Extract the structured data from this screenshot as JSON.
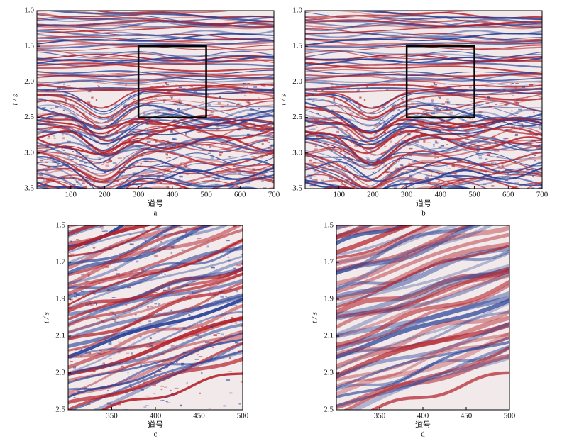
{
  "chart_data": [
    {
      "type": "seismic",
      "caption": "a",
      "xlabel": "道号",
      "ylabel": "t / s",
      "xlim": [
        0,
        700
      ],
      "xticks": [
        100,
        200,
        300,
        400,
        500,
        600,
        700
      ],
      "ylim": [
        3.5,
        1.0
      ],
      "yticks": [
        {
          "value": 1,
          "label": "1.0"
        },
        1.5,
        {
          "value": 2,
          "label": "2.0"
        },
        2.5,
        {
          "value": 3,
          "label": "3.0"
        },
        3.5
      ],
      "box": {
        "x": [
          300,
          500
        ],
        "y": [
          1.5,
          2.5
        ]
      }
    },
    {
      "type": "seismic",
      "caption": "b",
      "xlabel": "道号",
      "ylabel": "t / s",
      "xlim": [
        0,
        700
      ],
      "xticks": [
        100,
        200,
        300,
        400,
        500,
        600,
        700
      ],
      "ylim": [
        3.5,
        1.0
      ],
      "yticks": [
        {
          "value": 1,
          "label": "1.0"
        },
        1.5,
        {
          "value": 2,
          "label": "2.0"
        },
        2.5,
        {
          "value": 3,
          "label": "3.0"
        },
        3.5
      ],
      "box": {
        "x": [
          300,
          500
        ],
        "y": [
          1.5,
          2.5
        ]
      }
    },
    {
      "type": "seismic",
      "caption": "c",
      "xlabel": "道号",
      "ylabel": "t / s",
      "xlim": [
        300,
        500
      ],
      "xticks": [
        350,
        400,
        450,
        500
      ],
      "ylim": [
        2.5,
        1.5
      ],
      "yticks": [
        1.5,
        1.7,
        1.9,
        2.1,
        2.3,
        2.5
      ]
    },
    {
      "type": "seismic",
      "caption": "d",
      "xlabel": "道号",
      "ylabel": "t / s",
      "xlim": [
        300,
        500
      ],
      "xticks": [
        350,
        400,
        450,
        500
      ],
      "ylim": [
        2.5,
        1.5
      ],
      "yticks": [
        1.5,
        1.7,
        1.9,
        2.1,
        2.3,
        2.5
      ]
    }
  ]
}
